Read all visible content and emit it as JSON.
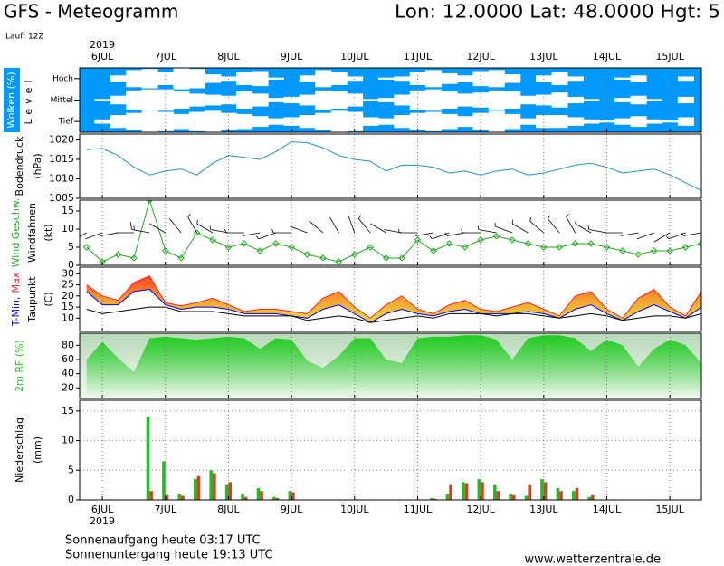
{
  "header": {
    "title": "GFS - Meteogramm",
    "location": "Lon: 12.0000  Lat: 48.0000  Hgt: 5",
    "run": "Lauf: 12Z",
    "year": "2019"
  },
  "footer": {
    "sunrise": "Sonnenaufgang heute 03:17 UTC",
    "sunset": "Sonnenuntergang heute 19:13 UTC",
    "site": "www.wetterzentrale.de"
  },
  "chart_data": [
    {
      "type": "heatmap",
      "ylabel": "Wolken (%)",
      "ylabel2": "Level",
      "background": "#0099ff",
      "levels": [
        "Hoch",
        "Mittel",
        "Tief"
      ],
      "x": [
        5.75,
        6,
        6.25,
        6.5,
        6.75,
        7,
        7.25,
        7.5,
        7.75,
        8,
        8.25,
        8.5,
        8.75,
        9,
        9.25,
        9.5,
        9.75,
        10,
        10.25,
        10.5,
        10.75,
        11,
        11.25,
        11.5,
        11.75,
        12,
        12.25,
        12.5,
        12.75,
        13,
        13.25,
        13.5,
        13.75,
        14,
        14.25,
        14.5,
        14.75,
        15,
        15.25,
        15.5
      ],
      "xlim": [
        5.64,
        15.5
      ],
      "xticks": [
        {
          "value": 6,
          "label": "6JUL"
        },
        {
          "value": 7,
          "label": "7JUL"
        },
        {
          "value": 8,
          "label": "8JUL"
        },
        {
          "value": 9,
          "label": "9JUL"
        },
        {
          "value": 10,
          "label": "10JUL"
        },
        {
          "value": 11,
          "label": "11JUL"
        },
        {
          "value": 12,
          "label": "12JUL"
        },
        {
          "value": 13,
          "label": "13JUL"
        },
        {
          "value": 14,
          "label": "14JUL"
        },
        {
          "value": 15,
          "label": "15JUL"
        }
      ],
      "series": [
        {
          "color": "#ffffff",
          "values": [
            0,
            0,
            30,
            80,
            90,
            60,
            100,
            90,
            40,
            20,
            60,
            70,
            10,
            0,
            30,
            80,
            60,
            20,
            0,
            10,
            20,
            60,
            80,
            50,
            30,
            70,
            80,
            40,
            0,
            30,
            60,
            20,
            0,
            0,
            10,
            30,
            0,
            0,
            20,
            0
          ]
        },
        {
          "color": "#ffffff",
          "values": [
            0,
            10,
            40,
            90,
            100,
            100,
            80,
            60,
            50,
            40,
            80,
            60,
            20,
            30,
            50,
            90,
            80,
            60,
            10,
            20,
            50,
            90,
            100,
            80,
            60,
            70,
            90,
            80,
            40,
            50,
            70,
            30,
            10,
            0,
            20,
            40,
            10,
            0,
            30,
            0
          ]
        },
        {
          "color": "#ffffff",
          "values": [
            0,
            20,
            60,
            80,
            100,
            90,
            70,
            90,
            100,
            80,
            70,
            50,
            30,
            40,
            60,
            80,
            100,
            90,
            40,
            30,
            60,
            80,
            90,
            70,
            50,
            80,
            100,
            70,
            30,
            60,
            60,
            40,
            20,
            10,
            30,
            50,
            20,
            10,
            40,
            0
          ]
        }
      ]
    },
    {
      "type": "line",
      "ylabel": "Bodendruck",
      "yunit": "(hPa)",
      "x": [
        5.75,
        6,
        6.25,
        6.5,
        6.75,
        7,
        7.25,
        7.5,
        7.75,
        8,
        8.25,
        8.5,
        8.75,
        9,
        9.25,
        9.5,
        9.75,
        10,
        10.25,
        10.5,
        10.75,
        11,
        11.25,
        11.5,
        11.75,
        12,
        12.25,
        12.5,
        12.75,
        13,
        13.25,
        13.5,
        13.75,
        14,
        14.25,
        14.5,
        14.75,
        15,
        15.25,
        15.5
      ],
      "xlim": [
        5.64,
        15.5
      ],
      "xticks": [
        {
          "value": 6,
          "label": "6JUL"
        },
        {
          "value": 7,
          "label": "7JUL"
        },
        {
          "value": 8,
          "label": "8JUL"
        },
        {
          "value": 9,
          "label": "9JUL"
        },
        {
          "value": 10,
          "label": "10JUL"
        },
        {
          "value": 11,
          "label": "11JUL"
        },
        {
          "value": 12,
          "label": "12JUL"
        },
        {
          "value": 13,
          "label": "13JUL"
        },
        {
          "value": 14,
          "label": "14JUL"
        },
        {
          "value": 15,
          "label": "15JUL"
        }
      ],
      "ylim": [
        1005,
        1021.5
      ],
      "yticks": [
        1005,
        1010,
        1015,
        1020
      ],
      "series": [
        {
          "color": "#1e90d0",
          "values": [
            1017.5,
            1017.8,
            1016,
            1013,
            1011,
            1012,
            1012.5,
            1011,
            1014,
            1016,
            1015.5,
            1015,
            1017,
            1019.5,
            1019.3,
            1018,
            1016,
            1015,
            1014.5,
            1012,
            1013.5,
            1013.5,
            1013,
            1011.5,
            1012,
            1011,
            1012,
            1012.5,
            1011,
            1011.5,
            1012.5,
            1013.5,
            1014,
            1013,
            1011.5,
            1012,
            1012.5,
            1011,
            1009,
            1007
          ]
        }
      ]
    },
    {
      "type": "line",
      "yunit": "(kt)",
      "markers": true,
      "barb_label": "Windfahnen",
      "barb_color": "#000000",
      "x": [
        5.75,
        6,
        6.25,
        6.5,
        6.75,
        7,
        7.25,
        7.5,
        7.75,
        8,
        8.25,
        8.5,
        8.75,
        9,
        9.25,
        9.5,
        9.75,
        10,
        10.25,
        10.5,
        10.75,
        11,
        11.25,
        11.5,
        11.75,
        12,
        12.25,
        12.5,
        12.75,
        13,
        13.25,
        13.5,
        13.75,
        14,
        14.25,
        14.5,
        14.75,
        15,
        15.25,
        15.5
      ],
      "xlim": [
        5.64,
        15.5
      ],
      "xticks": [
        {
          "value": 6,
          "label": "6JUL"
        },
        {
          "value": 7,
          "label": "7JUL"
        },
        {
          "value": 8,
          "label": "8JUL"
        },
        {
          "value": 9,
          "label": "9JUL"
        },
        {
          "value": 10,
          "label": "10JUL"
        },
        {
          "value": 11,
          "label": "11JUL"
        },
        {
          "value": 12,
          "label": "12JUL"
        },
        {
          "value": 13,
          "label": "13JUL"
        },
        {
          "value": 14,
          "label": "14JUL"
        },
        {
          "value": 15,
          "label": "15JUL"
        }
      ],
      "ylim": [
        0,
        18
      ],
      "yticks": [
        0,
        5,
        10,
        15
      ],
      "series": [
        {
          "name": "Wind Geschw.",
          "color": "#22aa22",
          "values": [
            5,
            1,
            3,
            2,
            18,
            4,
            2,
            9,
            7,
            5,
            6,
            4,
            6,
            5,
            3,
            2,
            1,
            3,
            5,
            2,
            2,
            7,
            4,
            6,
            5,
            7,
            8,
            7,
            6,
            5,
            5,
            6,
            6,
            5,
            4,
            3,
            4,
            4,
            5,
            6
          ]
        }
      ],
      "wind_direction": [
        240,
        250,
        260,
        270,
        280,
        300,
        320,
        330,
        300,
        280,
        270,
        260,
        250,
        270,
        290,
        310,
        330,
        340,
        320,
        300,
        280,
        270,
        260,
        250,
        260,
        270,
        280,
        290,
        300,
        310,
        320,
        330,
        300,
        280,
        270,
        260,
        250,
        240,
        250,
        260
      ]
    },
    {
      "type": "band",
      "yunit": "(C)",
      "band": [
        1,
        0
      ],
      "fill_colors": [
        "#ff4020",
        "#f5a030",
        "#e8e040"
      ],
      "x": [
        5.75,
        6,
        6.25,
        6.5,
        6.75,
        7,
        7.25,
        7.5,
        7.75,
        8,
        8.25,
        8.5,
        8.75,
        9,
        9.25,
        9.5,
        9.75,
        10,
        10.25,
        10.5,
        10.75,
        11,
        11.25,
        11.5,
        11.75,
        12,
        12.25,
        12.5,
        12.75,
        13,
        13.25,
        13.5,
        13.75,
        14,
        14.25,
        14.5,
        14.75,
        15,
        15.25,
        15.5
      ],
      "xlim": [
        5.64,
        15.5
      ],
      "xticks": [
        {
          "value": 6,
          "label": "6JUL"
        },
        {
          "value": 7,
          "label": "7JUL"
        },
        {
          "value": 8,
          "label": "8JUL"
        },
        {
          "value": 9,
          "label": "9JUL"
        },
        {
          "value": 10,
          "label": "10JUL"
        },
        {
          "value": 11,
          "label": "11JUL"
        },
        {
          "value": 12,
          "label": "12JUL"
        },
        {
          "value": 13,
          "label": "13JUL"
        },
        {
          "value": 14,
          "label": "14JUL"
        },
        {
          "value": 15,
          "label": "15JUL"
        }
      ],
      "ylim": [
        4,
        33
      ],
      "yticks": [
        10,
        15,
        20,
        25,
        30
      ],
      "series": [
        {
          "name": "T-Min,",
          "color": "#0000ff",
          "values": [
            22,
            16,
            16,
            22,
            23,
            16,
            14,
            15,
            15,
            14,
            12,
            12,
            12,
            11,
            10,
            14,
            16,
            12,
            8,
            12,
            14,
            12,
            11,
            13,
            14,
            12,
            12,
            12,
            13,
            12,
            10,
            14,
            16,
            12,
            9,
            13,
            16,
            13,
            10,
            15
          ]
        },
        {
          "name": "Max",
          "color": "#ff2020",
          "values": [
            25,
            20,
            18,
            26,
            29,
            17,
            15.5,
            17,
            19,
            16,
            13,
            14,
            14,
            13,
            12,
            19,
            22,
            15,
            10,
            16,
            20,
            14,
            12,
            16,
            18,
            14,
            13,
            15,
            17,
            14,
            11,
            20,
            22,
            14,
            10,
            19,
            23,
            15,
            11,
            22
          ]
        },
        {
          "name": "Taupunkt",
          "color": "#000000",
          "values": [
            14,
            12,
            13,
            14,
            15,
            15,
            13,
            13,
            13,
            12,
            11,
            11,
            11,
            11,
            9,
            10,
            11,
            10,
            8,
            9,
            10,
            11,
            10,
            12,
            12,
            12,
            11,
            12,
            12,
            11,
            10,
            11,
            12,
            11,
            9,
            10,
            11,
            11,
            10,
            12
          ]
        }
      ]
    },
    {
      "type": "area",
      "x": [
        5.75,
        6,
        6.25,
        6.5,
        6.75,
        7,
        7.25,
        7.5,
        7.75,
        8,
        8.25,
        8.5,
        8.75,
        9,
        9.25,
        9.5,
        9.75,
        10,
        10.25,
        10.5,
        10.75,
        11,
        11.25,
        11.5,
        11.75,
        12,
        12.25,
        12.5,
        12.75,
        13,
        13.25,
        13.5,
        13.75,
        14,
        14.25,
        14.5,
        14.75,
        15,
        15.25,
        15.5
      ],
      "xlim": [
        5.64,
        15.5
      ],
      "xticks": [
        {
          "value": 6,
          "label": "6JUL"
        },
        {
          "value": 7,
          "label": "7JUL"
        },
        {
          "value": 8,
          "label": "8JUL"
        },
        {
          "value": 9,
          "label": "9JUL"
        },
        {
          "value": 10,
          "label": "10JUL"
        },
        {
          "value": 11,
          "label": "11JUL"
        },
        {
          "value": 12,
          "label": "12JUL"
        },
        {
          "value": 13,
          "label": "13JUL"
        },
        {
          "value": 14,
          "label": "14JUL"
        },
        {
          "value": 15,
          "label": "15JUL"
        }
      ],
      "ylim": [
        5,
        97
      ],
      "yticks": [
        20,
        40,
        60,
        80
      ],
      "series": [
        {
          "name": "2m RF (%)",
          "color": "#22cc22",
          "values": [
            60,
            85,
            62,
            42,
            90,
            92,
            90,
            88,
            90,
            92,
            90,
            75,
            90,
            88,
            58,
            48,
            65,
            90,
            90,
            60,
            55,
            90,
            92,
            92,
            94,
            94,
            88,
            60,
            90,
            94,
            94,
            90,
            72,
            88,
            80,
            50,
            75,
            88,
            80,
            55
          ]
        }
      ]
    },
    {
      "type": "bar",
      "ylabel": "Niederschlag",
      "yunit": "(mm)",
      "grid": true,
      "x": [
        5.75,
        6,
        6.25,
        6.5,
        6.75,
        7,
        7.25,
        7.5,
        7.75,
        8,
        8.25,
        8.5,
        8.75,
        9,
        9.25,
        9.5,
        9.75,
        10,
        10.25,
        10.5,
        10.75,
        11,
        11.25,
        11.5,
        11.75,
        12,
        12.25,
        12.5,
        12.75,
        13,
        13.25,
        13.5,
        13.75,
        14,
        14.25,
        14.5,
        14.75,
        15,
        15.25,
        15.5
      ],
      "xlim": [
        5.64,
        15.5
      ],
      "xticks": [
        {
          "value": 6,
          "label": "6JUL"
        },
        {
          "value": 7,
          "label": "7JUL"
        },
        {
          "value": 8,
          "label": "8JUL"
        },
        {
          "value": 9,
          "label": "9JUL"
        },
        {
          "value": 10,
          "label": "10JUL"
        },
        {
          "value": 11,
          "label": "11JUL"
        },
        {
          "value": 12,
          "label": "12JUL"
        },
        {
          "value": 13,
          "label": "13JUL"
        },
        {
          "value": 14,
          "label": "14JUL"
        },
        {
          "value": 15,
          "label": "15JUL"
        }
      ],
      "ylim": [
        0,
        16.8
      ],
      "yticks": [
        0,
        5,
        10,
        15
      ],
      "series": [
        {
          "color": "#22bb22",
          "values": [
            0,
            0,
            0,
            0,
            14,
            6.5,
            1,
            3.5,
            5,
            2.5,
            1,
            2,
            0.5,
            1.5,
            0,
            0,
            0,
            0,
            0,
            0,
            0,
            0,
            0.3,
            1,
            3,
            3.5,
            2.5,
            1,
            0.7,
            3.5,
            2,
            1.5,
            0.5,
            0,
            0,
            0,
            0,
            0,
            0,
            0
          ]
        },
        {
          "color": "#cc4422",
          "values": [
            0,
            0,
            0,
            0,
            1.5,
            0.8,
            0.7,
            4,
            4.5,
            3,
            0.5,
            1.5,
            0.3,
            1.3,
            0,
            0,
            0,
            0,
            0,
            0,
            0,
            0,
            0.2,
            2.5,
            2.8,
            3,
            1.5,
            0.8,
            2.5,
            3,
            1.5,
            2,
            0.8,
            0,
            0,
            0,
            0,
            0,
            0,
            0
          ]
        }
      ]
    }
  ]
}
